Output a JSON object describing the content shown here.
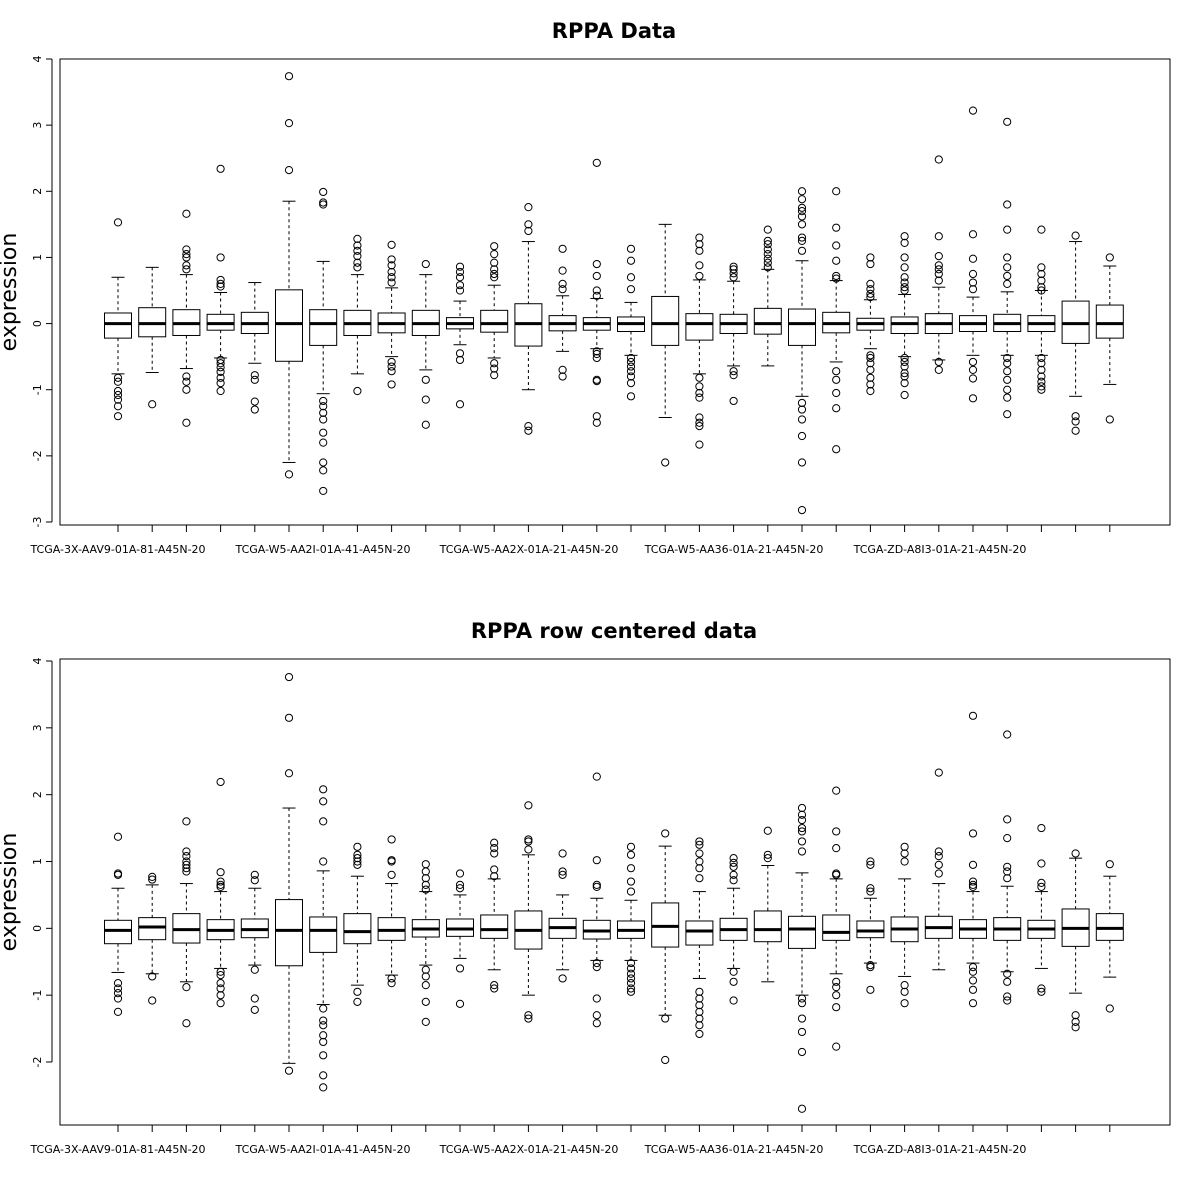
{
  "chart_data": [
    {
      "type": "boxplot",
      "title": "RPPA Data",
      "ylabel": "expression",
      "ylim": [
        -3,
        4
      ],
      "yticks": [
        -3,
        -2,
        -1,
        0,
        1,
        2,
        3,
        4
      ],
      "x_tick_labels": [
        "TCGA-3X-AAV9-01A-81-A45N-20",
        "TCGA-W5-AA2I-01A-41-A45N-20",
        "TCGA-W5-AA2X-01A-21-A45N-20",
        "TCGA-W5-AA36-01A-21-A45N-20",
        "TCGA-ZD-A8I3-01A-21-A45N-20"
      ],
      "boxes": [
        {
          "q1": -0.22,
          "median": 0.0,
          "q3": 0.16,
          "lo": -0.76,
          "hi": 0.7,
          "out": [
            1.53,
            -0.82,
            -0.88,
            -1.02,
            -1.08,
            -1.15,
            -1.25,
            -1.4
          ]
        },
        {
          "q1": -0.2,
          "median": 0.0,
          "q3": 0.24,
          "lo": -0.74,
          "hi": 0.85,
          "out": [
            -1.22
          ]
        },
        {
          "q1": -0.18,
          "median": 0.0,
          "q3": 0.21,
          "lo": -0.68,
          "hi": 0.74,
          "out": [
            1.66,
            1.12,
            1.05,
            1.0,
            0.88,
            0.82,
            -0.8,
            -0.88,
            -1.0,
            -1.5
          ]
        },
        {
          "q1": -0.1,
          "median": 0.0,
          "q3": 0.14,
          "lo": -0.52,
          "hi": 0.47,
          "out": [
            2.34,
            1.0,
            0.66,
            0.6,
            0.56,
            -0.55,
            -0.6,
            -0.66,
            -0.73,
            -0.82,
            -0.9,
            -1.02
          ]
        },
        {
          "q1": -0.15,
          "median": 0.0,
          "q3": 0.17,
          "lo": -0.6,
          "hi": 0.62,
          "out": [
            -0.78,
            -0.85,
            -1.18,
            -1.3
          ]
        },
        {
          "q1": -0.57,
          "median": 0.0,
          "q3": 0.51,
          "lo": -2.1,
          "hi": 1.85,
          "out": [
            3.74,
            3.03,
            2.32,
            -2.28
          ]
        },
        {
          "q1": -0.33,
          "median": 0.0,
          "q3": 0.21,
          "lo": -1.06,
          "hi": 0.94,
          "out": [
            1.99,
            1.83,
            1.8,
            -1.17,
            -1.25,
            -1.35,
            -1.45,
            -1.65,
            -1.8,
            -2.1,
            -2.22,
            -2.53
          ]
        },
        {
          "q1": -0.18,
          "median": 0.0,
          "q3": 0.2,
          "lo": -0.76,
          "hi": 0.74,
          "out": [
            1.28,
            1.18,
            1.1,
            1.02,
            0.92,
            0.85,
            -1.02
          ]
        },
        {
          "q1": -0.14,
          "median": 0.0,
          "q3": 0.16,
          "lo": -0.5,
          "hi": 0.54,
          "out": [
            1.19,
            0.97,
            0.88,
            0.78,
            0.7,
            0.62,
            -0.58,
            -0.65,
            -0.72,
            -0.92
          ]
        },
        {
          "q1": -0.18,
          "median": 0.0,
          "q3": 0.2,
          "lo": -0.7,
          "hi": 0.74,
          "out": [
            0.9,
            -0.85,
            -1.15,
            -1.53
          ]
        },
        {
          "q1": -0.08,
          "median": 0.0,
          "q3": 0.09,
          "lo": -0.32,
          "hi": 0.34,
          "out": [
            0.86,
            0.78,
            0.7,
            0.58,
            0.5,
            -0.45,
            -0.55,
            -1.22
          ]
        },
        {
          "q1": -0.13,
          "median": 0.0,
          "q3": 0.2,
          "lo": -0.52,
          "hi": 0.58,
          "out": [
            1.17,
            1.05,
            0.92,
            0.82,
            0.75,
            0.7,
            -0.6,
            -0.68,
            -0.78
          ]
        },
        {
          "q1": -0.34,
          "median": 0.0,
          "q3": 0.3,
          "lo": -1.0,
          "hi": 1.24,
          "out": [
            1.76,
            1.5,
            1.4,
            -1.55,
            -1.62
          ]
        },
        {
          "q1": -0.11,
          "median": 0.0,
          "q3": 0.12,
          "lo": -0.42,
          "hi": 0.42,
          "out": [
            1.13,
            0.8,
            0.6,
            0.52,
            -0.7,
            -0.8
          ]
        },
        {
          "q1": -0.1,
          "median": 0.0,
          "q3": 0.09,
          "lo": -0.38,
          "hi": 0.38,
          "out": [
            2.43,
            0.9,
            0.72,
            0.5,
            0.42,
            -0.42,
            -0.46,
            -0.52,
            -0.85,
            -0.87,
            -1.4,
            -1.5
          ]
        },
        {
          "q1": -0.12,
          "median": 0.0,
          "q3": 0.1,
          "lo": -0.48,
          "hi": 0.32,
          "out": [
            1.13,
            0.95,
            0.7,
            0.52,
            -0.52,
            -0.58,
            -0.65,
            -0.72,
            -0.8,
            -0.9,
            -1.1
          ]
        },
        {
          "q1": -0.33,
          "median": 0.0,
          "q3": 0.41,
          "lo": -1.42,
          "hi": 1.5,
          "out": [
            -2.1
          ]
        },
        {
          "q1": -0.25,
          "median": 0.0,
          "q3": 0.15,
          "lo": -0.76,
          "hi": 0.66,
          "out": [
            1.3,
            1.2,
            1.1,
            0.88,
            0.72,
            -0.82,
            -0.95,
            -1.05,
            -1.12,
            -1.42,
            -1.5,
            -1.55,
            -1.83
          ]
        },
        {
          "q1": -0.15,
          "median": 0.0,
          "q3": 0.14,
          "lo": -0.64,
          "hi": 0.64,
          "out": [
            0.86,
            0.82,
            0.76,
            0.7,
            -0.72,
            -0.78,
            -1.17
          ]
        },
        {
          "q1": -0.16,
          "median": 0.0,
          "q3": 0.23,
          "lo": -0.64,
          "hi": 0.82,
          "out": [
            1.42,
            1.25,
            1.2,
            1.12,
            1.05,
            0.98,
            0.92,
            0.85
          ]
        },
        {
          "q1": -0.33,
          "median": 0.0,
          "q3": 0.22,
          "lo": -1.1,
          "hi": 0.95,
          "out": [
            2.0,
            1.88,
            1.75,
            1.7,
            1.62,
            1.5,
            1.3,
            1.25,
            1.1,
            -1.2,
            -1.3,
            -1.45,
            -1.7,
            -2.1,
            -2.82
          ]
        },
        {
          "q1": -0.14,
          "median": 0.0,
          "q3": 0.17,
          "lo": -0.58,
          "hi": 0.65,
          "out": [
            2.0,
            1.45,
            1.18,
            0.95,
            0.72,
            0.68,
            -0.72,
            -0.85,
            -1.05,
            -1.28,
            -1.9
          ]
        },
        {
          "q1": -0.1,
          "median": 0.0,
          "q3": 0.08,
          "lo": -0.38,
          "hi": 0.36,
          "out": [
            1.0,
            0.9,
            0.6,
            0.52,
            0.45,
            0.4,
            -0.48,
            -0.52,
            -0.6,
            -0.7,
            -0.82,
            -0.92,
            -1.02
          ]
        },
        {
          "q1": -0.15,
          "median": 0.0,
          "q3": 0.1,
          "lo": -0.5,
          "hi": 0.44,
          "out": [
            1.32,
            1.22,
            1.0,
            0.85,
            0.7,
            0.62,
            0.55,
            0.5,
            -0.52,
            -0.58,
            -0.65,
            -0.75,
            -0.8,
            -0.9,
            -1.08
          ]
        },
        {
          "q1": -0.15,
          "median": 0.0,
          "q3": 0.15,
          "lo": -0.55,
          "hi": 0.55,
          "out": [
            2.48,
            1.32,
            1.02,
            0.88,
            0.82,
            0.75,
            0.65,
            -0.58,
            -0.7
          ]
        },
        {
          "q1": -0.12,
          "median": 0.0,
          "q3": 0.12,
          "lo": -0.48,
          "hi": 0.4,
          "out": [
            3.22,
            1.35,
            0.98,
            0.75,
            0.62,
            0.52,
            -0.58,
            -0.7,
            -0.83,
            -1.13
          ]
        },
        {
          "q1": -0.12,
          "median": 0.0,
          "q3": 0.14,
          "lo": -0.48,
          "hi": 0.48,
          "out": [
            3.05,
            1.8,
            1.42,
            1.0,
            0.85,
            0.72,
            0.6,
            -0.52,
            -0.6,
            -0.72,
            -0.85,
            -1.0,
            -1.12,
            -1.37
          ]
        },
        {
          "q1": -0.12,
          "median": 0.0,
          "q3": 0.12,
          "lo": -0.48,
          "hi": 0.5,
          "out": [
            1.42,
            0.85,
            0.75,
            0.65,
            0.55,
            0.5,
            -0.52,
            -0.6,
            -0.7,
            -0.8,
            -0.88,
            -0.95,
            -1.0
          ]
        },
        {
          "q1": -0.3,
          "median": 0.0,
          "q3": 0.34,
          "lo": -1.1,
          "hi": 1.24,
          "out": [
            1.33,
            -1.4,
            -1.48,
            -1.62
          ]
        },
        {
          "q1": -0.22,
          "median": 0.0,
          "q3": 0.28,
          "lo": -0.92,
          "hi": 0.87,
          "out": [
            1.0,
            -1.45
          ]
        }
      ]
    },
    {
      "type": "boxplot",
      "title": "RPPA row centered data",
      "ylabel": "expression",
      "ylim": [
        -3,
        4
      ],
      "yticks": [
        -2,
        -1,
        0,
        1,
        2,
        3,
        4
      ],
      "x_tick_labels": [
        "TCGA-3X-AAV9-01A-81-A45N-20",
        "TCGA-W5-AA2I-01A-41-A45N-20",
        "TCGA-W5-AA2X-01A-21-A45N-20",
        "TCGA-W5-AA36-01A-21-A45N-20",
        "TCGA-ZD-A8I3-01A-21-A45N-20"
      ],
      "boxes": [
        {
          "q1": -0.23,
          "median": -0.03,
          "q3": 0.12,
          "lo": -0.66,
          "hi": 0.6,
          "out": [
            1.37,
            0.82,
            0.8,
            -0.82,
            -0.9,
            -0.97,
            -1.05,
            -1.25
          ]
        },
        {
          "q1": -0.17,
          "median": 0.02,
          "q3": 0.16,
          "lo": -0.68,
          "hi": 0.65,
          "out": [
            0.77,
            0.73,
            -0.72,
            -1.08
          ]
        },
        {
          "q1": -0.22,
          "median": -0.02,
          "q3": 0.22,
          "lo": -0.8,
          "hi": 0.67,
          "out": [
            1.6,
            1.15,
            1.08,
            1.0,
            0.95,
            0.9,
            0.85,
            -0.88,
            -1.42
          ]
        },
        {
          "q1": -0.17,
          "median": -0.03,
          "q3": 0.13,
          "lo": -0.6,
          "hi": 0.55,
          "out": [
            2.19,
            0.84,
            0.7,
            0.65,
            0.62,
            -0.65,
            -0.7,
            -0.82,
            -0.9,
            -1.0,
            -1.12
          ]
        },
        {
          "q1": -0.14,
          "median": -0.02,
          "q3": 0.14,
          "lo": -0.55,
          "hi": 0.6,
          "out": [
            0.8,
            0.72,
            -0.62,
            -1.05,
            -1.22
          ]
        },
        {
          "q1": -0.56,
          "median": -0.03,
          "q3": 0.43,
          "lo": -2.02,
          "hi": 1.8,
          "out": [
            3.76,
            3.15,
            2.32,
            -2.13
          ]
        },
        {
          "q1": -0.36,
          "median": -0.03,
          "q3": 0.17,
          "lo": -1.14,
          "hi": 0.86,
          "out": [
            2.08,
            1.9,
            1.6,
            1.0,
            -1.2,
            -1.38,
            -1.45,
            -1.6,
            -1.7,
            -1.9,
            -2.2,
            -2.38
          ]
        },
        {
          "q1": -0.23,
          "median": -0.05,
          "q3": 0.22,
          "lo": -0.85,
          "hi": 0.78,
          "out": [
            1.22,
            1.1,
            1.05,
            1.0,
            0.95,
            -0.95,
            -1.1
          ]
        },
        {
          "q1": -0.18,
          "median": -0.03,
          "q3": 0.16,
          "lo": -0.7,
          "hi": 0.67,
          "out": [
            1.33,
            1.02,
            1.0,
            0.8,
            -0.75,
            -0.82
          ]
        },
        {
          "q1": -0.13,
          "median": -0.01,
          "q3": 0.13,
          "lo": -0.55,
          "hi": 0.55,
          "out": [
            0.96,
            0.85,
            0.75,
            0.65,
            0.58,
            -0.62,
            -0.72,
            -0.85,
            -1.1,
            -1.4
          ]
        },
        {
          "q1": -0.12,
          "median": -0.01,
          "q3": 0.14,
          "lo": -0.45,
          "hi": 0.5,
          "out": [
            0.82,
            0.65,
            0.6,
            -0.6,
            -1.13
          ]
        },
        {
          "q1": -0.15,
          "median": -0.02,
          "q3": 0.2,
          "lo": -0.62,
          "hi": 0.74,
          "out": [
            1.28,
            1.2,
            1.12,
            0.88,
            0.78,
            -0.85,
            -0.9
          ]
        },
        {
          "q1": -0.31,
          "median": -0.03,
          "q3": 0.26,
          "lo": -1.0,
          "hi": 1.1,
          "out": [
            1.84,
            1.33,
            1.3,
            1.18,
            -1.3,
            -1.35
          ]
        },
        {
          "q1": -0.15,
          "median": 0.01,
          "q3": 0.15,
          "lo": -0.62,
          "hi": 0.5,
          "out": [
            1.12,
            0.85,
            0.8,
            -0.75
          ]
        },
        {
          "q1": -0.16,
          "median": -0.04,
          "q3": 0.12,
          "lo": -0.48,
          "hi": 0.45,
          "out": [
            2.27,
            1.02,
            0.65,
            0.62,
            -0.52,
            -0.58,
            -1.05,
            -1.3,
            -1.42
          ]
        },
        {
          "q1": -0.15,
          "median": -0.03,
          "q3": 0.11,
          "lo": -0.48,
          "hi": 0.42,
          "out": [
            1.22,
            1.1,
            0.9,
            0.7,
            0.55,
            -0.52,
            -0.6,
            -0.68,
            -0.75,
            -0.82,
            -0.9,
            -0.95
          ]
        },
        {
          "q1": -0.28,
          "median": 0.03,
          "q3": 0.38,
          "lo": -1.3,
          "hi": 1.23,
          "out": [
            1.42,
            -1.35,
            -1.97
          ]
        },
        {
          "q1": -0.25,
          "median": -0.04,
          "q3": 0.11,
          "lo": -0.75,
          "hi": 0.55,
          "out": [
            1.3,
            1.25,
            1.12,
            1.0,
            0.9,
            0.75,
            -0.95,
            -1.05,
            -1.15,
            -1.25,
            -1.35,
            -1.45,
            -1.58
          ]
        },
        {
          "q1": -0.18,
          "median": -0.02,
          "q3": 0.15,
          "lo": -0.6,
          "hi": 0.6,
          "out": [
            1.05,
            0.98,
            0.92,
            0.8,
            0.72,
            -0.65,
            -0.8,
            -1.08
          ]
        },
        {
          "q1": -0.2,
          "median": -0.02,
          "q3": 0.26,
          "lo": -0.8,
          "hi": 0.94,
          "out": [
            1.46,
            1.1,
            1.05
          ]
        },
        {
          "q1": -0.3,
          "median": -0.01,
          "q3": 0.18,
          "lo": -1.0,
          "hi": 0.83,
          "out": [
            1.8,
            1.7,
            1.62,
            1.5,
            1.45,
            1.3,
            1.15,
            -1.05,
            -1.12,
            -1.35,
            -1.55,
            -1.85,
            -2.7
          ]
        },
        {
          "q1": -0.18,
          "median": -0.06,
          "q3": 0.2,
          "lo": -0.68,
          "hi": 0.74,
          "out": [
            2.06,
            1.45,
            1.2,
            0.82,
            0.8,
            -0.8,
            -0.88,
            -1.0,
            -1.18,
            -1.77
          ]
        },
        {
          "q1": -0.14,
          "median": -0.04,
          "q3": 0.11,
          "lo": -0.52,
          "hi": 0.45,
          "out": [
            1.0,
            0.95,
            0.6,
            0.55,
            -0.55,
            -0.58,
            -0.92
          ]
        },
        {
          "q1": -0.2,
          "median": -0.01,
          "q3": 0.17,
          "lo": -0.72,
          "hi": 0.74,
          "out": [
            1.22,
            1.12,
            1.0,
            -0.85,
            -0.95,
            -1.12
          ]
        },
        {
          "q1": -0.15,
          "median": 0.01,
          "q3": 0.18,
          "lo": -0.62,
          "hi": 0.67,
          "out": [
            2.33,
            1.15,
            1.08,
            0.95,
            0.82
          ]
        },
        {
          "q1": -0.15,
          "median": -0.01,
          "q3": 0.13,
          "lo": -0.52,
          "hi": 0.55,
          "out": [
            3.18,
            1.42,
            0.95,
            0.7,
            0.65,
            0.62,
            -0.58,
            -0.65,
            -0.78,
            -0.92,
            -1.12
          ]
        },
        {
          "q1": -0.18,
          "median": -0.01,
          "q3": 0.16,
          "lo": -0.65,
          "hi": 0.63,
          "out": [
            2.9,
            1.63,
            1.35,
            0.92,
            0.85,
            0.75,
            -0.68,
            -0.8,
            -1.02,
            -1.08
          ]
        },
        {
          "q1": -0.15,
          "median": -0.01,
          "q3": 0.12,
          "lo": -0.6,
          "hi": 0.55,
          "out": [
            1.5,
            0.97,
            0.68,
            0.62,
            -0.9,
            -0.95
          ]
        },
        {
          "q1": -0.27,
          "median": 0.0,
          "q3": 0.29,
          "lo": -0.97,
          "hi": 1.05,
          "out": [
            1.12,
            -1.3,
            -1.4,
            -1.48
          ]
        },
        {
          "q1": -0.18,
          "median": 0.0,
          "q3": 0.22,
          "lo": -0.73,
          "hi": 0.78,
          "out": [
            0.96,
            -1.2
          ]
        }
      ]
    }
  ]
}
